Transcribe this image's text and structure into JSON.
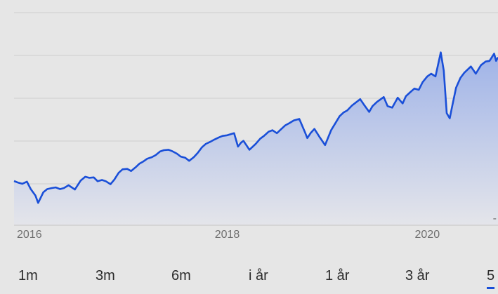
{
  "chart_data": {
    "type": "area",
    "title": "",
    "xlabel": "",
    "ylabel": "",
    "grid": true,
    "line_color": "#1a4fd8",
    "fill_color_top": "#9fb3e8",
    "fill_color_bottom": "#e4e5ea",
    "x_ticks": [
      "2016",
      "2018",
      "2020"
    ],
    "y_ticks": [
      "-"
    ],
    "xlim": [
      "2015-11-15",
      "2020-09-15"
    ],
    "ylim": [
      0,
      100
    ],
    "series": [
      {
        "points": [
          [
            "2015-11-15",
            20.8
          ],
          [
            "2015-12-01",
            20.0
          ],
          [
            "2015-12-15",
            19.5
          ],
          [
            "2016-01-01",
            20.5
          ],
          [
            "2016-01-15",
            17.0
          ],
          [
            "2016-02-01",
            14.0
          ],
          [
            "2016-02-11",
            10.5
          ],
          [
            "2016-03-01",
            15.5
          ],
          [
            "2016-03-15",
            17.0
          ],
          [
            "2016-04-01",
            17.5
          ],
          [
            "2016-04-15",
            17.8
          ],
          [
            "2016-05-01",
            17.0
          ],
          [
            "2016-05-15",
            17.5
          ],
          [
            "2016-06-01",
            18.8
          ],
          [
            "2016-06-24",
            16.8
          ],
          [
            "2016-07-15",
            21.0
          ],
          [
            "2016-08-01",
            22.8
          ],
          [
            "2016-08-15",
            22.3
          ],
          [
            "2016-09-01",
            22.5
          ],
          [
            "2016-09-15",
            20.7
          ],
          [
            "2016-10-01",
            21.3
          ],
          [
            "2016-10-15",
            20.7
          ],
          [
            "2016-11-01",
            19.3
          ],
          [
            "2016-11-15",
            21.5
          ],
          [
            "2016-12-01",
            24.7
          ],
          [
            "2016-12-15",
            26.3
          ],
          [
            "2017-01-01",
            26.5
          ],
          [
            "2017-01-15",
            25.5
          ],
          [
            "2017-02-01",
            27.3
          ],
          [
            "2017-02-15",
            29.0
          ],
          [
            "2017-03-01",
            30.0
          ],
          [
            "2017-03-15",
            31.3
          ],
          [
            "2017-04-01",
            32.0
          ],
          [
            "2017-04-15",
            33.0
          ],
          [
            "2017-05-01",
            34.7
          ],
          [
            "2017-05-15",
            35.3
          ],
          [
            "2017-06-01",
            35.5
          ],
          [
            "2017-06-15",
            34.8
          ],
          [
            "2017-07-01",
            33.7
          ],
          [
            "2017-07-15",
            32.3
          ],
          [
            "2017-08-01",
            31.7
          ],
          [
            "2017-08-15",
            30.3
          ],
          [
            "2017-09-01",
            32.0
          ],
          [
            "2017-09-15",
            34.0
          ],
          [
            "2017-10-01",
            36.7
          ],
          [
            "2017-10-15",
            38.3
          ],
          [
            "2017-11-01",
            39.3
          ],
          [
            "2017-11-15",
            40.3
          ],
          [
            "2017-12-01",
            41.3
          ],
          [
            "2017-12-15",
            42.0
          ],
          [
            "2018-01-01",
            42.3
          ],
          [
            "2018-01-26",
            43.3
          ],
          [
            "2018-02-09",
            37.0
          ],
          [
            "2018-02-20",
            38.8
          ],
          [
            "2018-03-01",
            39.7
          ],
          [
            "2018-03-23",
            35.5
          ],
          [
            "2018-04-15",
            38.3
          ],
          [
            "2018-05-01",
            40.7
          ],
          [
            "2018-05-15",
            42.0
          ],
          [
            "2018-06-01",
            44.0
          ],
          [
            "2018-06-15",
            44.7
          ],
          [
            "2018-07-01",
            43.3
          ],
          [
            "2018-07-15",
            45.0
          ],
          [
            "2018-08-01",
            47.0
          ],
          [
            "2018-08-15",
            48.0
          ],
          [
            "2018-09-01",
            49.3
          ],
          [
            "2018-09-21",
            50.0
          ],
          [
            "2018-10-11",
            44.0
          ],
          [
            "2018-10-20",
            41.0
          ],
          [
            "2018-11-01",
            43.3
          ],
          [
            "2018-11-15",
            45.3
          ],
          [
            "2018-12-05",
            41.3
          ],
          [
            "2018-12-24",
            37.7
          ],
          [
            "2019-01-15",
            44.7
          ],
          [
            "2019-02-01",
            48.3
          ],
          [
            "2019-02-15",
            51.3
          ],
          [
            "2019-03-01",
            53.0
          ],
          [
            "2019-03-15",
            54.0
          ],
          [
            "2019-04-01",
            56.3
          ],
          [
            "2019-04-15",
            57.7
          ],
          [
            "2019-05-01",
            59.3
          ],
          [
            "2019-05-15",
            56.7
          ],
          [
            "2019-06-03",
            53.3
          ],
          [
            "2019-06-15",
            56.0
          ],
          [
            "2019-07-01",
            58.0
          ],
          [
            "2019-07-26",
            60.3
          ],
          [
            "2019-08-09",
            56.0
          ],
          [
            "2019-08-26",
            55.3
          ],
          [
            "2019-09-15",
            60.0
          ],
          [
            "2019-10-03",
            57.3
          ],
          [
            "2019-10-15",
            60.7
          ],
          [
            "2019-11-01",
            62.7
          ],
          [
            "2019-11-15",
            64.3
          ],
          [
            "2019-12-01",
            63.7
          ],
          [
            "2019-12-15",
            67.3
          ],
          [
            "2020-01-01",
            70.0
          ],
          [
            "2020-01-15",
            71.3
          ],
          [
            "2020-01-31",
            70.0
          ],
          [
            "2020-02-19",
            81.3
          ],
          [
            "2020-03-01",
            72.7
          ],
          [
            "2020-03-12",
            52.7
          ],
          [
            "2020-03-23",
            50.3
          ],
          [
            "2020-04-01",
            56.0
          ],
          [
            "2020-04-15",
            64.7
          ],
          [
            "2020-05-01",
            69.3
          ],
          [
            "2020-05-15",
            71.7
          ],
          [
            "2020-06-08",
            74.7
          ],
          [
            "2020-06-26",
            71.3
          ],
          [
            "2020-07-15",
            75.3
          ],
          [
            "2020-08-01",
            77.0
          ],
          [
            "2020-08-15",
            77.3
          ],
          [
            "2020-09-01",
            80.7
          ],
          [
            "2020-09-08",
            77.3
          ],
          [
            "2020-09-15",
            79.0
          ]
        ]
      }
    ]
  },
  "range_selector": {
    "items": [
      "1m",
      "3m",
      "6m",
      "i år",
      "1 år",
      "3 år",
      "5"
    ],
    "active_index": 6
  }
}
